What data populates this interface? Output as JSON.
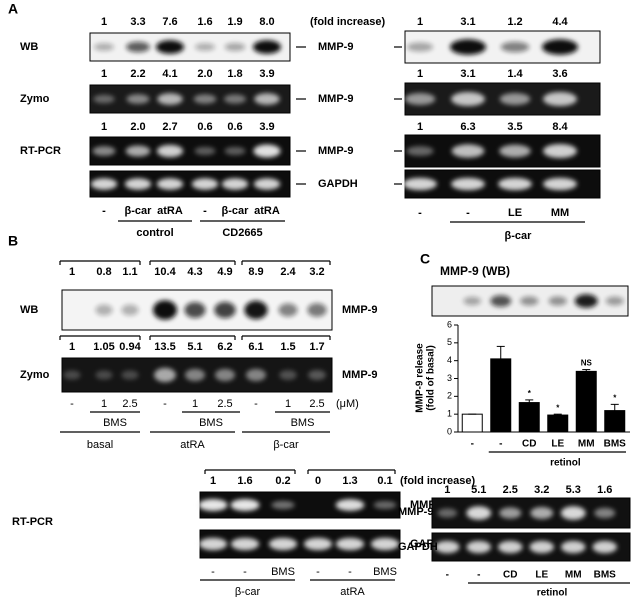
{
  "panel_a": {
    "label": "A",
    "fold_label": "(fold increase)",
    "target": "MMP-9",
    "gapdh": "GAPDH",
    "rows": [
      {
        "method": "WB",
        "left": [
          "1",
          "3.3",
          "7.6",
          "1.6",
          "1.9",
          "8.0"
        ],
        "right": [
          "1",
          "3.1",
          "1.2",
          "4.4"
        ]
      },
      {
        "method": "Zymo",
        "left": [
          "1",
          "2.2",
          "4.1",
          "2.0",
          "1.8",
          "3.9"
        ],
        "right": [
          "1",
          "3.1",
          "1.4",
          "3.6"
        ]
      },
      {
        "method": "RT-PCR",
        "left": [
          "1",
          "2.0",
          "2.7",
          "0.6",
          "0.6",
          "3.9"
        ],
        "right": [
          "1",
          "6.3",
          "3.5",
          "8.4"
        ]
      }
    ],
    "left_lanes": [
      "-",
      "β-car",
      "atRA",
      "-",
      "β-car",
      "atRA"
    ],
    "left_groups": [
      "control",
      "CD2665"
    ],
    "right_lanes": [
      "-",
      "-",
      "LE",
      "MM"
    ],
    "right_group": "β-car"
  },
  "panel_b": {
    "label": "B",
    "target": "MMP-9",
    "gapdh": "GAPDH",
    "rows": [
      {
        "method": "WB",
        "values": [
          "1",
          "0.8",
          "1.1",
          "10.4",
          "4.3",
          "4.9",
          "8.9",
          "2.4",
          "3.2"
        ]
      },
      {
        "method": "Zymo",
        "values": [
          "1",
          "1.05",
          "0.94",
          "13.5",
          "5.1",
          "6.2",
          "6.1",
          "1.5",
          "1.7"
        ]
      }
    ],
    "lanes": [
      "-",
      "1",
      "2.5",
      "-",
      "1",
      "2.5",
      "-",
      "1",
      "2.5"
    ],
    "unit": "(μM)",
    "drug": "BMS",
    "groups": [
      "basal",
      "atRA",
      "β-car"
    ],
    "rtpcr": {
      "method": "RT-PCR",
      "values": [
        "1",
        "1.6",
        "0.2",
        "0",
        "1.3",
        "0.1"
      ],
      "fold_label": "(fold increase)",
      "lanes": [
        "-",
        "-",
        "BMS",
        "-",
        "-",
        "BMS"
      ],
      "groups": [
        "β-car",
        "atRA"
      ]
    }
  },
  "panel_c": {
    "label": "C",
    "blot_title": "MMP-9 (WB)",
    "rtpcr": {
      "values": [
        "1",
        "5.1",
        "2.5",
        "3.2",
        "5.3",
        "1.6"
      ],
      "target": "MMP-9",
      "gapdh": "GAPDH",
      "lanes": [
        "-",
        "-",
        "CD",
        "LE",
        "MM",
        "BMS"
      ],
      "group": "retinol"
    }
  },
  "chart_data": {
    "type": "bar",
    "y_label": [
      "MMP-9 release",
      "(fold of basal)"
    ],
    "categories": [
      "-",
      "-",
      "CD",
      "LE",
      "MM",
      "BMS"
    ],
    "group_label": "retinol",
    "values": [
      1,
      4.1,
      1.65,
      0.95,
      3.4,
      1.2
    ],
    "errors": [
      0,
      0.7,
      0.15,
      0.05,
      0.1,
      0.35
    ],
    "colors": [
      "#ffffff",
      "#000000",
      "#000000",
      "#000000",
      "#000000",
      "#000000"
    ],
    "bar_labels": [
      null,
      null,
      "*",
      "*",
      "NS",
      "*"
    ],
    "ylim": [
      0,
      6
    ],
    "yticks": [
      0,
      1,
      2,
      3,
      4,
      5,
      6
    ]
  }
}
